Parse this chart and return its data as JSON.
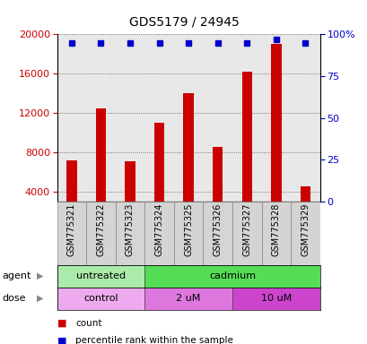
{
  "title": "GDS5179 / 24945",
  "samples": [
    "GSM775321",
    "GSM775322",
    "GSM775323",
    "GSM775324",
    "GSM775325",
    "GSM775326",
    "GSM775327",
    "GSM775328",
    "GSM775329"
  ],
  "counts": [
    7200,
    12500,
    7100,
    11000,
    14000,
    8500,
    16200,
    19000,
    4500
  ],
  "percentiles": [
    95,
    95,
    95,
    95,
    95,
    95,
    95,
    97,
    95
  ],
  "bar_color": "#cc0000",
  "dot_color": "#0000cc",
  "ylim_left": [
    3000,
    20000
  ],
  "yticks_left": [
    4000,
    8000,
    12000,
    16000,
    20000
  ],
  "ylim_right": [
    0,
    100
  ],
  "yticks_right": [
    0,
    25,
    50,
    75,
    100
  ],
  "yticklabels_right": [
    "0",
    "25",
    "50",
    "75",
    "100%"
  ],
  "agent_labels": [
    {
      "text": "untreated",
      "start": 0,
      "end": 2,
      "color": "#aaeaaa"
    },
    {
      "text": "cadmium",
      "start": 3,
      "end": 8,
      "color": "#55dd55"
    }
  ],
  "dose_labels": [
    {
      "text": "control",
      "start": 0,
      "end": 2,
      "color": "#eeaaee"
    },
    {
      "text": "2 uM",
      "start": 3,
      "end": 5,
      "color": "#dd77dd"
    },
    {
      "text": "10 uM",
      "start": 6,
      "end": 8,
      "color": "#cc44cc"
    }
  ],
  "legend_count_color": "#cc0000",
  "legend_pct_color": "#0000cc",
  "bg_color": "#ffffff",
  "plot_bg": "#e8e8e8",
  "grid_color": "#555555",
  "tick_color_left": "#cc0000",
  "tick_color_right": "#0000cc",
  "bar_width": 0.35
}
